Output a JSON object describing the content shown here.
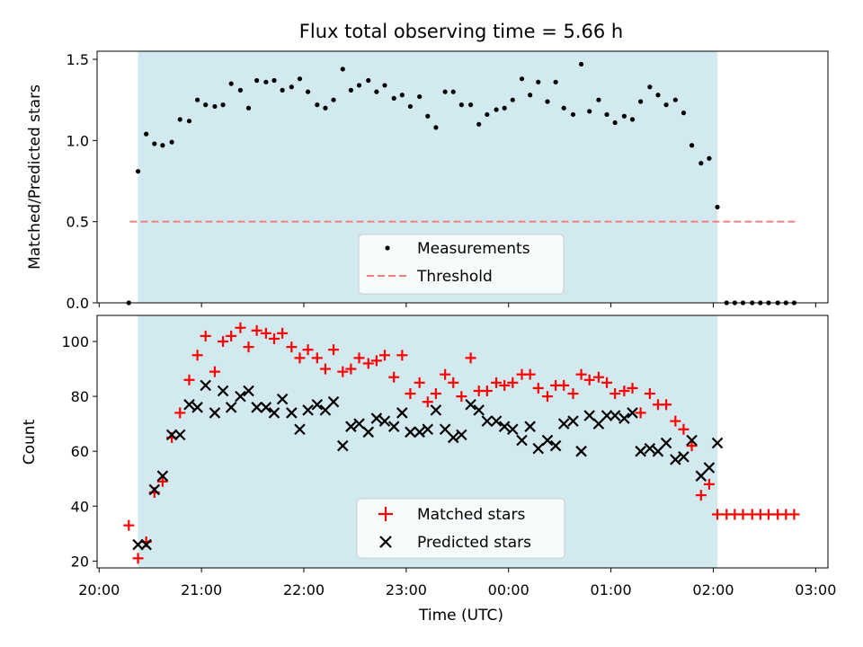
{
  "chart_data": {
    "title": "Flux total observing time = 5.66 h",
    "xlabel": "Time (UTC)",
    "x_tick_labels": [
      "20:00",
      "21:00",
      "22:00",
      "23:00",
      "00:00",
      "01:00",
      "02:00",
      "03:00"
    ],
    "x_tick_hours": [
      20,
      21,
      22,
      23,
      24,
      25,
      26,
      27
    ],
    "xlim": [
      19.98,
      27.12
    ],
    "observing_window": [
      20.38,
      26.04
    ],
    "observing_window_color": "#d2e9ef",
    "top": {
      "type": "scatter",
      "ylabel": "Matched/Predicted stars",
      "ylim": [
        0,
        1.55
      ],
      "y_ticks": [
        0.0,
        0.5,
        1.0,
        1.5
      ],
      "y_tick_labels": [
        "0.0",
        "0.5",
        "1.0",
        "1.5"
      ],
      "legend_position": "bottom-center",
      "series": [
        {
          "name": "Measurements",
          "color": "#000000",
          "marker": "dot",
          "x": [
            20.29,
            20.38,
            20.46,
            20.54,
            20.62,
            20.71,
            20.79,
            20.88,
            20.96,
            21.04,
            21.13,
            21.21,
            21.29,
            21.38,
            21.46,
            21.54,
            21.63,
            21.71,
            21.79,
            21.88,
            21.96,
            22.04,
            22.13,
            22.21,
            22.29,
            22.38,
            22.46,
            22.54,
            22.63,
            22.71,
            22.79,
            22.88,
            22.96,
            23.04,
            23.13,
            23.21,
            23.29,
            23.38,
            23.46,
            23.54,
            23.63,
            23.71,
            23.79,
            23.88,
            23.96,
            24.04,
            24.13,
            24.21,
            24.29,
            24.38,
            24.46,
            24.54,
            24.63,
            24.71,
            24.79,
            24.88,
            24.96,
            25.04,
            25.13,
            25.21,
            25.29,
            25.38,
            25.46,
            25.54,
            25.63,
            25.71,
            25.79,
            25.88,
            25.96,
            26.04,
            26.13,
            26.21,
            26.29,
            26.38,
            26.46,
            26.54,
            26.63,
            26.71,
            26.79
          ],
          "y": [
            0.0,
            0.81,
            1.04,
            0.98,
            0.97,
            0.99,
            1.13,
            1.12,
            1.25,
            1.22,
            1.21,
            1.22,
            1.35,
            1.31,
            1.2,
            1.37,
            1.36,
            1.37,
            1.31,
            1.33,
            1.38,
            1.3,
            1.22,
            1.2,
            1.25,
            1.44,
            1.31,
            1.34,
            1.37,
            1.3,
            1.34,
            1.26,
            1.28,
            1.21,
            1.27,
            1.15,
            1.08,
            1.3,
            1.3,
            1.22,
            1.22,
            1.1,
            1.16,
            1.19,
            1.2,
            1.25,
            1.38,
            1.28,
            1.36,
            1.24,
            1.36,
            1.2,
            1.16,
            1.47,
            1.18,
            1.25,
            1.16,
            1.11,
            1.15,
            1.13,
            1.24,
            1.33,
            1.28,
            1.22,
            1.25,
            1.17,
            0.97,
            0.86,
            0.89,
            0.59,
            0.0,
            0.0,
            0.0,
            0.0,
            0.0,
            0.0,
            0.0,
            0.0,
            0.0
          ]
        },
        {
          "name": "Threshold",
          "color": "#f08080",
          "style": "dashed",
          "x": [
            20.3,
            26.8
          ],
          "y": [
            0.5,
            0.5
          ]
        }
      ]
    },
    "bottom": {
      "type": "scatter",
      "ylabel": "Count",
      "ylim": [
        17.5,
        109.5
      ],
      "y_ticks": [
        20,
        40,
        60,
        80,
        100
      ],
      "y_tick_labels": [
        "20",
        "40",
        "60",
        "80",
        "100"
      ],
      "legend_position": "bottom-center",
      "series": [
        {
          "name": "Matched stars",
          "color": "#ff0000",
          "marker": "plus",
          "x": [
            20.29,
            20.38,
            20.46,
            20.54,
            20.62,
            20.71,
            20.79,
            20.88,
            20.96,
            21.04,
            21.13,
            21.21,
            21.29,
            21.38,
            21.46,
            21.54,
            21.63,
            21.71,
            21.79,
            21.88,
            21.96,
            22.04,
            22.13,
            22.21,
            22.29,
            22.38,
            22.46,
            22.54,
            22.63,
            22.71,
            22.79,
            22.88,
            22.96,
            23.04,
            23.13,
            23.21,
            23.29,
            23.38,
            23.46,
            23.54,
            23.63,
            23.71,
            23.79,
            23.88,
            23.96,
            24.04,
            24.13,
            24.21,
            24.29,
            24.38,
            24.46,
            24.54,
            24.63,
            24.71,
            24.79,
            24.88,
            24.96,
            25.04,
            25.13,
            25.21,
            25.29,
            25.38,
            25.46,
            25.54,
            25.63,
            25.71,
            25.79,
            25.88,
            25.96,
            26.04,
            26.13,
            26.21,
            26.29,
            26.38,
            26.46,
            26.54,
            26.63,
            26.71,
            26.79
          ],
          "y": [
            33,
            21,
            27,
            45,
            49,
            65,
            74,
            86,
            95,
            102,
            89,
            100,
            102,
            105,
            98,
            104,
            103,
            101,
            103,
            98,
            94,
            97,
            94,
            90,
            97,
            89,
            90,
            94,
            92,
            93,
            95,
            87,
            95,
            81,
            85,
            78,
            81,
            88,
            85,
            80,
            94,
            82,
            82,
            85,
            84,
            85,
            88,
            88,
            83,
            80,
            84,
            84,
            81,
            88,
            86,
            87,
            85,
            81,
            82,
            83,
            74,
            81,
            77,
            77,
            71,
            68,
            62,
            44,
            48,
            37,
            37,
            37,
            37,
            37,
            37,
            37,
            37,
            37,
            37
          ]
        },
        {
          "name": "Predicted stars",
          "color": "#000000",
          "marker": "x",
          "x": [
            20.38,
            20.46,
            20.54,
            20.62,
            20.71,
            20.79,
            20.88,
            20.96,
            21.04,
            21.13,
            21.21,
            21.29,
            21.38,
            21.46,
            21.54,
            21.63,
            21.71,
            21.79,
            21.88,
            21.96,
            22.04,
            22.13,
            22.21,
            22.29,
            22.38,
            22.46,
            22.54,
            22.63,
            22.71,
            22.79,
            22.88,
            22.96,
            23.04,
            23.13,
            23.21,
            23.29,
            23.38,
            23.46,
            23.54,
            23.63,
            23.71,
            23.79,
            23.88,
            23.96,
            24.04,
            24.13,
            24.21,
            24.29,
            24.38,
            24.46,
            24.54,
            24.63,
            24.71,
            24.79,
            24.88,
            24.96,
            25.04,
            25.13,
            25.21,
            25.29,
            25.38,
            25.46,
            25.54,
            25.63,
            25.71,
            25.79,
            25.88,
            25.96,
            26.04
          ],
          "y": [
            26,
            26,
            46,
            51,
            66,
            66,
            77,
            76,
            84,
            74,
            82,
            76,
            80,
            82,
            76,
            76,
            74,
            79,
            74,
            68,
            75,
            77,
            75,
            78,
            62,
            69,
            70,
            67,
            72,
            71,
            69,
            74,
            67,
            67,
            68,
            75,
            68,
            65,
            66,
            77,
            75,
            71,
            71,
            69,
            68,
            64,
            69,
            61,
            64,
            62,
            70,
            71,
            60,
            73,
            70,
            73,
            73,
            72,
            74,
            60,
            61,
            60,
            63,
            57,
            58,
            64,
            51,
            54,
            63
          ]
        }
      ]
    }
  }
}
